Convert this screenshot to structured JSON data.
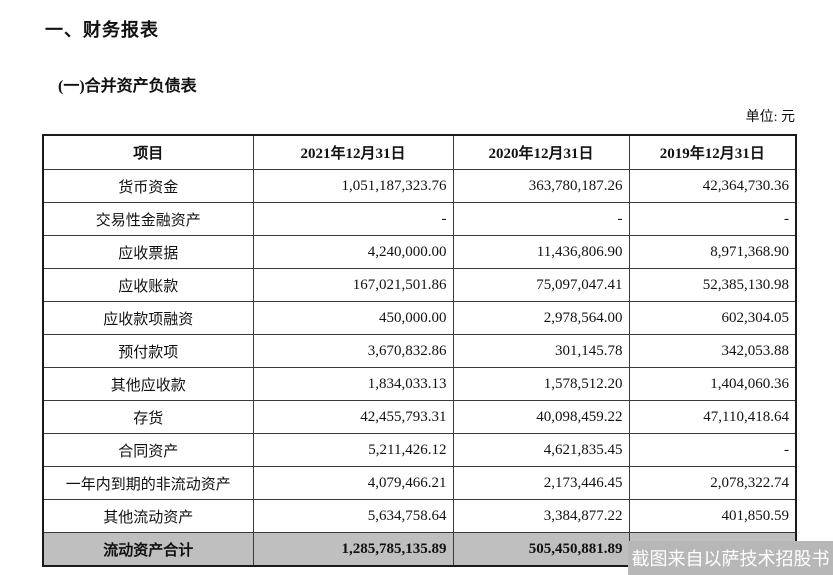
{
  "page": {
    "section_title": "一、财务报表",
    "subsection_title": "(一)合并资产负债表",
    "unit_label": "单位: 元"
  },
  "table": {
    "headers": {
      "item": "项目",
      "y2021": "2021年12月31日",
      "y2020": "2020年12月31日",
      "y2019": "2019年12月31日"
    },
    "rows": [
      {
        "item": "货币资金",
        "values": [
          "1,051,187,323.76",
          "363,780,187.26",
          "42,364,730.36"
        ]
      },
      {
        "item": "交易性金融资产",
        "values": [
          "-",
          "-",
          "-"
        ]
      },
      {
        "item": "应收票据",
        "values": [
          "4,240,000.00",
          "11,436,806.90",
          "8,971,368.90"
        ]
      },
      {
        "item": "应收账款",
        "values": [
          "167,021,501.86",
          "75,097,047.41",
          "52,385,130.98"
        ]
      },
      {
        "item": "应收款项融资",
        "values": [
          "450,000.00",
          "2,978,564.00",
          "602,304.05"
        ]
      },
      {
        "item": "预付款项",
        "values": [
          "3,670,832.86",
          "301,145.78",
          "342,053.88"
        ]
      },
      {
        "item": "其他应收款",
        "values": [
          "1,834,033.13",
          "1,578,512.20",
          "1,404,060.36"
        ]
      },
      {
        "item": "存货",
        "values": [
          "42,455,793.31",
          "40,098,459.22",
          "47,110,418.64"
        ]
      },
      {
        "item": "合同资产",
        "values": [
          "5,211,426.12",
          "4,621,835.45",
          "-"
        ]
      },
      {
        "item": "一年内到期的非流动资产",
        "values": [
          "4,079,466.21",
          "2,173,446.45",
          "2,078,322.74"
        ]
      },
      {
        "item": "其他流动资产",
        "values": [
          "5,634,758.64",
          "3,384,877.22",
          "401,850.59"
        ]
      }
    ],
    "total_row": {
      "item": "流动资产合计",
      "values": [
        "1,285,785,135.89",
        "505,450,881.89",
        ""
      ]
    }
  },
  "watermark": {
    "text": "截图来自以萨技术招股书"
  },
  "colors": {
    "total_row_bg": "#bfbfbf",
    "watermark_bg": "#b7b7b7",
    "watermark_text": "#ffffff",
    "border": "#3a3a3a"
  }
}
